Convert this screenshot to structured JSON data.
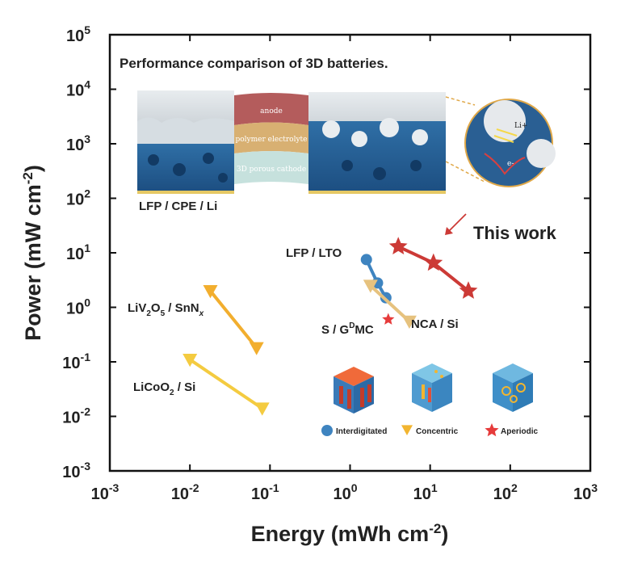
{
  "chart_data": {
    "type": "scatter",
    "title": "Performance comparison of 3D batteries.",
    "xlabel": "Energy (mWh cm",
    "xlabel_sup": "-2",
    "xlabel_end": ")",
    "ylabel": "Power (mW cm",
    "ylabel_sup": "-2",
    "ylabel_end": ")",
    "xscale": "log",
    "yscale": "log",
    "xlim_exp": [
      -3,
      3
    ],
    "ylim_exp": [
      -3,
      5
    ],
    "grid": false,
    "series": [
      {
        "name": "This work",
        "marker": "star",
        "color": "#cc3a36",
        "points": [
          [
            4.0,
            13
          ],
          [
            11,
            6.5
          ],
          [
            30,
            2.0
          ]
        ]
      },
      {
        "name": "LFP / LTO",
        "marker": "circle",
        "color": "#3e84c0",
        "points": [
          [
            1.6,
            7.5
          ],
          [
            2.2,
            2.8
          ],
          [
            2.8,
            1.5
          ]
        ]
      },
      {
        "name": "NCA / Si",
        "marker": "triangle",
        "color": "#e6c27e",
        "points": [
          [
            5.5,
            0.55
          ],
          [
            1.8,
            2.5
          ]
        ]
      },
      {
        "name": "LiV2O5 / SnNx",
        "marker": "triangle",
        "color": "#f2ae2e",
        "points": [
          [
            0.068,
            0.18
          ],
          [
            0.018,
            2.0
          ]
        ]
      },
      {
        "name": "LiCoO2 / Si",
        "marker": "triangle",
        "color": "#f4cb40",
        "points": [
          [
            0.08,
            0.014
          ],
          [
            0.01,
            0.11
          ]
        ]
      },
      {
        "name": "S / GDMC",
        "marker": "star",
        "color": "#e63b3b",
        "points": [
          [
            3.0,
            0.6
          ]
        ]
      }
    ],
    "labels": {
      "this_work": "This work",
      "lfp_lto": "LFP / LTO",
      "nca_si": "NCA / Si",
      "s_gdmc_main": "S / G",
      "s_gdmc_sup": "D",
      "s_gdmc_end": "MC",
      "liv_a": "LiV",
      "liv_b": "2",
      "liv_c": "O",
      "liv_d": "5",
      "liv_e": " / SnN",
      "liv_f": "x",
      "lico_a": "LiCoO",
      "lico_b": "2",
      "lico_c": " / Si",
      "lfp_cpe_li": "LFP / CPE / Li"
    },
    "inset": {
      "anode": "anode",
      "polymer_electrolyte": "polymer electrolyte",
      "porous_cathode": "3D porous cathode",
      "li_ion": "Li+",
      "electron": "e-"
    },
    "legend": {
      "placement": "bottom-right",
      "entries": [
        {
          "label": "Interdigitated",
          "marker": "circle",
          "color": "#3e84c0"
        },
        {
          "label": "Concentric",
          "marker": "triangle",
          "color": "#f2b530"
        },
        {
          "label": "Aperiodic",
          "marker": "star",
          "color": "#e63b3b"
        }
      ]
    },
    "tick_base": "10",
    "tick_exps_x": [
      "-3",
      "-2",
      "-1",
      "0",
      "1",
      "2",
      "3"
    ],
    "tick_exps_y": [
      "-3",
      "-2",
      "-1",
      "0",
      "1",
      "2",
      "3",
      "4",
      "5"
    ]
  }
}
